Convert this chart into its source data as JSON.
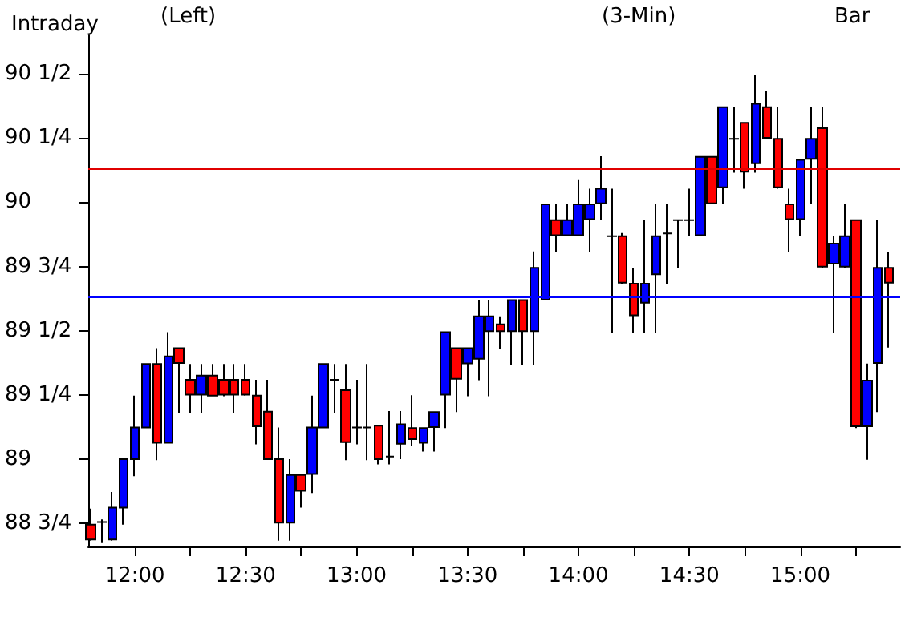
{
  "chart_data": {
    "type": "candlestick",
    "title": "Intraday",
    "annotations": [
      "(Left)",
      "(3-Min)",
      "Bar"
    ],
    "x": [
      11.8,
      11.85,
      11.9,
      11.95,
      12,
      12.05,
      12.1,
      12.15,
      12.2,
      12.25,
      12.3,
      12.35,
      12.4,
      12.45,
      12.5,
      12.55,
      12.6,
      12.65,
      12.7,
      12.75,
      12.8,
      12.85,
      12.9,
      12.95,
      13,
      13.05,
      13.1,
      13.15,
      13.2,
      13.25,
      13.3,
      13.35,
      13.4,
      13.45,
      13.5,
      13.55,
      13.6,
      13.65,
      13.7,
      13.75,
      13.8,
      13.85,
      13.9,
      13.95,
      14,
      14.05,
      14.1,
      14.15,
      14.2,
      14.25,
      14.3,
      14.35,
      14.4,
      14.45,
      14.5,
      14.55,
      14.6,
      14.65,
      14.7,
      14.75,
      14.8,
      14.85,
      14.9,
      14.95,
      15,
      15.05,
      15.1,
      15.15,
      15.2,
      15.25,
      15.3,
      15.35,
      15.4
    ],
    "ohlc": [
      [
        88.745,
        88.807,
        88.683,
        88.687
      ],
      [
        88.755,
        88.765,
        88.673,
        88.755
      ],
      [
        88.687,
        88.872,
        88.683,
        88.811
      ],
      [
        88.811,
        89.0,
        88.745,
        89.0
      ],
      [
        89.0,
        89.247,
        88.934,
        89.123
      ],
      [
        89.123,
        89.37,
        89.12,
        89.37
      ],
      [
        89.37,
        89.432,
        88.996,
        89.064
      ],
      [
        89.064,
        89.494,
        89.064,
        89.4
      ],
      [
        89.432,
        89.432,
        89.181,
        89.374
      ],
      [
        89.309,
        89.37,
        89.181,
        89.251
      ],
      [
        89.251,
        89.37,
        89.181,
        89.325
      ],
      [
        89.325,
        89.37,
        89.247,
        89.247
      ],
      [
        89.309,
        89.37,
        89.245,
        89.251
      ],
      [
        89.309,
        89.37,
        89.181,
        89.251
      ],
      [
        89.309,
        89.37,
        89.247,
        89.251
      ],
      [
        89.247,
        89.309,
        89.058,
        89.128
      ],
      [
        89.185,
        89.309,
        89.0,
        89.0
      ],
      [
        89.0,
        89.123,
        88.683,
        88.753
      ],
      [
        88.753,
        89.0,
        88.683,
        88.938
      ],
      [
        88.938,
        88.938,
        88.811,
        88.877
      ],
      [
        88.942,
        89.247,
        88.868,
        89.123
      ],
      [
        89.123,
        89.37,
        89.123,
        89.37
      ],
      [
        89.309,
        89.37,
        89.181,
        89.309
      ],
      [
        89.268,
        89.37,
        88.996,
        89.066
      ],
      [
        89.123,
        89.309,
        89.058,
        89.123
      ],
      [
        89.123,
        89.37,
        88.996,
        89.123
      ],
      [
        89.13,
        89.13,
        88.98,
        89.0
      ],
      [
        89.01,
        89.187,
        88.98,
        89.01
      ],
      [
        89.06,
        89.187,
        89.0,
        89.136
      ],
      [
        89.121,
        89.249,
        89.05,
        89.078
      ],
      [
        89.064,
        89.121,
        89.03,
        89.121
      ],
      [
        89.125,
        89.183,
        89.03,
        89.183
      ],
      [
        89.251,
        89.494,
        89.121,
        89.494
      ],
      [
        89.432,
        89.432,
        89.183,
        89.313
      ],
      [
        89.373,
        89.432,
        89.245,
        89.432
      ],
      [
        89.391,
        89.619,
        89.307,
        89.556
      ],
      [
        89.498,
        89.619,
        89.245,
        89.556
      ],
      [
        89.525,
        89.556,
        89.43,
        89.498
      ],
      [
        89.498,
        89.619,
        89.368,
        89.619
      ],
      [
        89.619,
        89.619,
        89.368,
        89.498
      ],
      [
        89.498,
        89.809,
        89.368,
        89.745
      ],
      [
        89.621,
        89.992,
        89.621,
        89.992
      ],
      [
        89.93,
        89.992,
        89.807,
        89.872
      ],
      [
        89.872,
        89.992,
        89.868,
        89.93
      ],
      [
        89.872,
        90.086,
        89.868,
        89.992
      ],
      [
        89.934,
        90.053,
        89.807,
        89.992
      ],
      [
        89.996,
        90.179,
        89.93,
        90.053
      ],
      [
        89.868,
        90.053,
        89.49,
        89.868
      ],
      [
        89.868,
        89.88,
        89.683,
        89.687
      ],
      [
        89.683,
        89.745,
        89.49,
        89.56
      ],
      [
        89.609,
        89.93,
        89.492,
        89.683
      ],
      [
        89.72,
        89.992,
        89.492,
        89.868
      ],
      [
        89.879,
        89.992,
        89.683,
        89.879
      ],
      [
        89.93,
        89.93,
        89.745,
        89.93
      ],
      [
        89.93,
        90.053,
        89.868,
        89.93
      ],
      [
        89.872,
        90.177,
        89.868,
        90.177
      ],
      [
        90.177,
        90.177,
        89.992,
        89.996
      ],
      [
        90.058,
        90.37,
        89.992,
        90.37
      ],
      [
        90.247,
        90.37,
        90.115,
        90.247
      ],
      [
        90.309,
        90.309,
        90.053,
        90.119
      ],
      [
        90.152,
        90.494,
        90.115,
        90.383
      ],
      [
        90.37,
        90.432,
        90.247,
        90.251
      ],
      [
        90.247,
        90.37,
        90.053,
        90.058
      ],
      [
        89.992,
        90.053,
        89.807,
        89.934
      ],
      [
        89.934,
        90.165,
        89.868,
        90.165
      ],
      [
        90.169,
        90.37,
        89.992,
        90.247
      ],
      [
        90.288,
        90.37,
        89.745,
        89.749
      ],
      [
        89.761,
        89.868,
        89.492,
        89.839
      ],
      [
        89.749,
        89.992,
        89.745,
        89.868
      ],
      [
        89.93,
        89.93,
        89.121,
        89.128
      ],
      [
        89.128,
        89.372,
        88.998,
        89.306
      ],
      [
        89.374,
        89.93,
        89.183,
        89.745
      ],
      [
        89.745,
        89.807,
        89.434,
        89.687
      ]
    ],
    "colors": [
      "#ff0000",
      "#000000",
      "#0000ff",
      "#0000ff",
      "#0000ff",
      "#0000ff",
      "#ff0000",
      "#0000ff",
      "#ff0000",
      "#ff0000",
      "#0000ff",
      "#ff0000",
      "#ff0000",
      "#ff0000",
      "#ff0000",
      "#ff0000",
      "#ff0000",
      "#ff0000",
      "#0000ff",
      "#ff0000",
      "#0000ff",
      "#0000ff",
      "#000000",
      "#ff0000",
      "#000000",
      "#000000",
      "#ff0000",
      "#000000",
      "#0000ff",
      "#ff0000",
      "#0000ff",
      "#0000ff",
      "#0000ff",
      "#ff0000",
      "#0000ff",
      "#0000ff",
      "#0000ff",
      "#ff0000",
      "#0000ff",
      "#ff0000",
      "#0000ff",
      "#0000ff",
      "#ff0000",
      "#0000ff",
      "#0000ff",
      "#0000ff",
      "#0000ff",
      "#000000",
      "#ff0000",
      "#ff0000",
      "#0000ff",
      "#0000ff",
      "#000000",
      "#000000",
      "#000000",
      "#0000ff",
      "#ff0000",
      "#0000ff",
      "#000000",
      "#ff0000",
      "#0000ff",
      "#ff0000",
      "#ff0000",
      "#ff0000",
      "#0000ff",
      "#0000ff",
      "#ff0000",
      "#0000ff",
      "#0000ff",
      "#ff0000",
      "#0000ff",
      "#0000ff",
      "#ff0000"
    ],
    "xlim": [
      11.79,
      15.45
    ],
    "xticks": [
      {
        "value": 12,
        "label": "12:00"
      },
      {
        "value": 12.25,
        "label": null
      },
      {
        "value": 12.5,
        "label": "12:30"
      },
      {
        "value": 12.75,
        "label": null
      },
      {
        "value": 13,
        "label": "13:00"
      },
      {
        "value": 13.25,
        "label": null
      },
      {
        "value": 13.5,
        "label": "13:30"
      },
      {
        "value": 13.75,
        "label": null
      },
      {
        "value": 14,
        "label": "14:00"
      },
      {
        "value": 14.25,
        "label": null
      },
      {
        "value": 14.5,
        "label": "14:30"
      },
      {
        "value": 14.75,
        "label": null
      },
      {
        "value": 15,
        "label": "15:00"
      },
      {
        "value": 15.25,
        "label": null
      }
    ],
    "ylim": [
      88.66,
      90.65
    ],
    "yticks": [
      {
        "value": 88.75,
        "label": "88 3/4"
      },
      {
        "value": 89,
        "label": "89"
      },
      {
        "value": 89.25,
        "label": "89 1/4"
      },
      {
        "value": 89.5,
        "label": "89 1/2"
      },
      {
        "value": 89.75,
        "label": "89 3/4"
      },
      {
        "value": 90,
        "label": "90"
      },
      {
        "value": 90.25,
        "label": "90 1/4"
      },
      {
        "value": 90.5,
        "label": "90 1/2"
      }
    ],
    "ref_lines": [
      {
        "axis": "y",
        "value": 90.125,
        "color": "#e00000"
      },
      {
        "axis": "y",
        "value": 89.625,
        "color": "#0000ff"
      }
    ],
    "grid": false
  }
}
